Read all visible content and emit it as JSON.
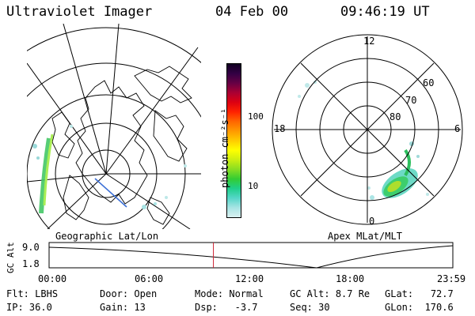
{
  "header": {
    "title": "Ultraviolet Imager",
    "date": "04 Feb 00",
    "time": "09:46:19 UT"
  },
  "left_panel": {
    "caption": "Geographic Lat/Lon"
  },
  "right_panel": {
    "caption": "Apex MLat/MLT",
    "mlt_labels": [
      "12",
      "18",
      "6",
      "0"
    ],
    "lat_labels": [
      "60",
      "70",
      "80"
    ]
  },
  "colorbar": {
    "unit_label": "photon cm⁻²s⁻¹",
    "tick_100": "100",
    "tick_10": "10",
    "colors": [
      "#d9f0f0",
      "#a8e4e4",
      "#55d6c8",
      "#1fcf8a",
      "#33cc33",
      "#88dd22",
      "#ccee11",
      "#ffff00",
      "#ffcc00",
      "#ff9900",
      "#ff6600",
      "#ff2200",
      "#dd0011",
      "#aa0033",
      "#660044",
      "#330044",
      "#110022"
    ]
  },
  "timeline": {
    "gc_alt_label": "GC Alt",
    "y_top": "9.0",
    "y_bottom": "1.8",
    "ticks": [
      "00:00",
      "06:00",
      "12:00",
      "18:00",
      "23:59"
    ],
    "current_time_fraction": 0.407
  },
  "info": {
    "filter_label": "Flt:",
    "filter": "LBHS",
    "ip_label": "IP:",
    "ip": "36.0",
    "door_label": "Door:",
    "door": "Open",
    "gain_label": "Gain:",
    "gain": "13",
    "mode_label": "Mode:",
    "mode": "Normal",
    "dsp_label": "Dsp:",
    "dsp": "-3.7",
    "gcalt_label": "GC Alt:",
    "gcalt": "8.7 Re",
    "seq_label": "Seq:",
    "seq": "30",
    "glat_label": "GLat:",
    "glat": "72.7",
    "glon_label": "GLon:",
    "glon": "170.6"
  }
}
